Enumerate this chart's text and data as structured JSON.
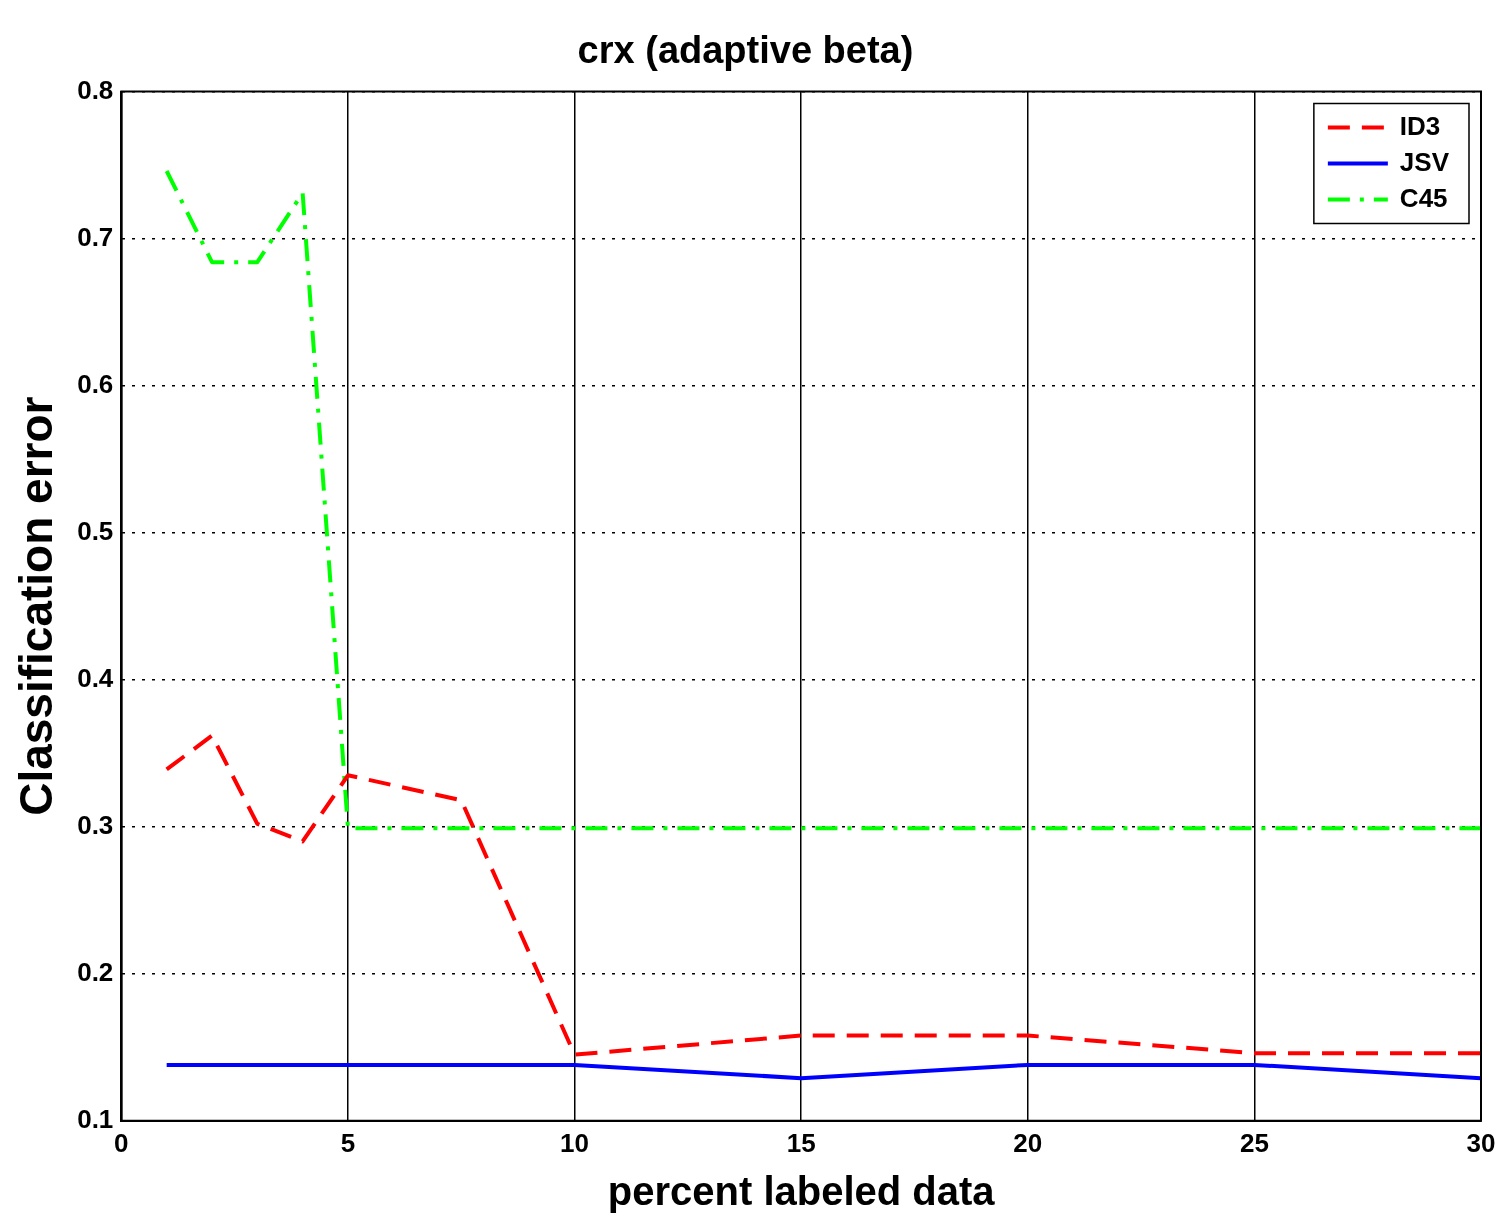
{
  "chart_data": {
    "type": "line",
    "title": "crx (adaptive beta)",
    "xlabel": "percent labeled data",
    "ylabel": "Classification error",
    "x": [
      1,
      2,
      3,
      4,
      5,
      7.5,
      10,
      15,
      20,
      25,
      30
    ],
    "series": [
      {
        "name": "ID3",
        "color": "#ff0000",
        "line_style": "dashed",
        "values": [
          0.339,
          0.362,
          0.302,
          0.29,
          0.335,
          0.318,
          0.145,
          0.158,
          0.158,
          0.146,
          0.146
        ]
      },
      {
        "name": "JSV",
        "color": "#0000ff",
        "line_style": "solid",
        "values": [
          0.138,
          0.138,
          0.138,
          0.138,
          0.138,
          0.138,
          0.138,
          0.129,
          0.138,
          0.138,
          0.129
        ]
      },
      {
        "name": "C45",
        "color": "#00ff00",
        "line_style": "dashdot",
        "values": [
          0.746,
          0.684,
          0.684,
          0.731,
          0.299,
          0.299,
          0.299,
          0.299,
          0.299,
          0.299,
          0.299
        ]
      }
    ],
    "xlim": [
      0,
      30
    ],
    "xticks": [
      0,
      5,
      10,
      15,
      20,
      25,
      30
    ],
    "ylim": [
      0.1,
      0.8
    ],
    "yticks": [
      0.1,
      0.2,
      0.3,
      0.4,
      0.5,
      0.6,
      0.7,
      0.8
    ],
    "grid": true,
    "legend": "top right",
    "marker": "none"
  }
}
